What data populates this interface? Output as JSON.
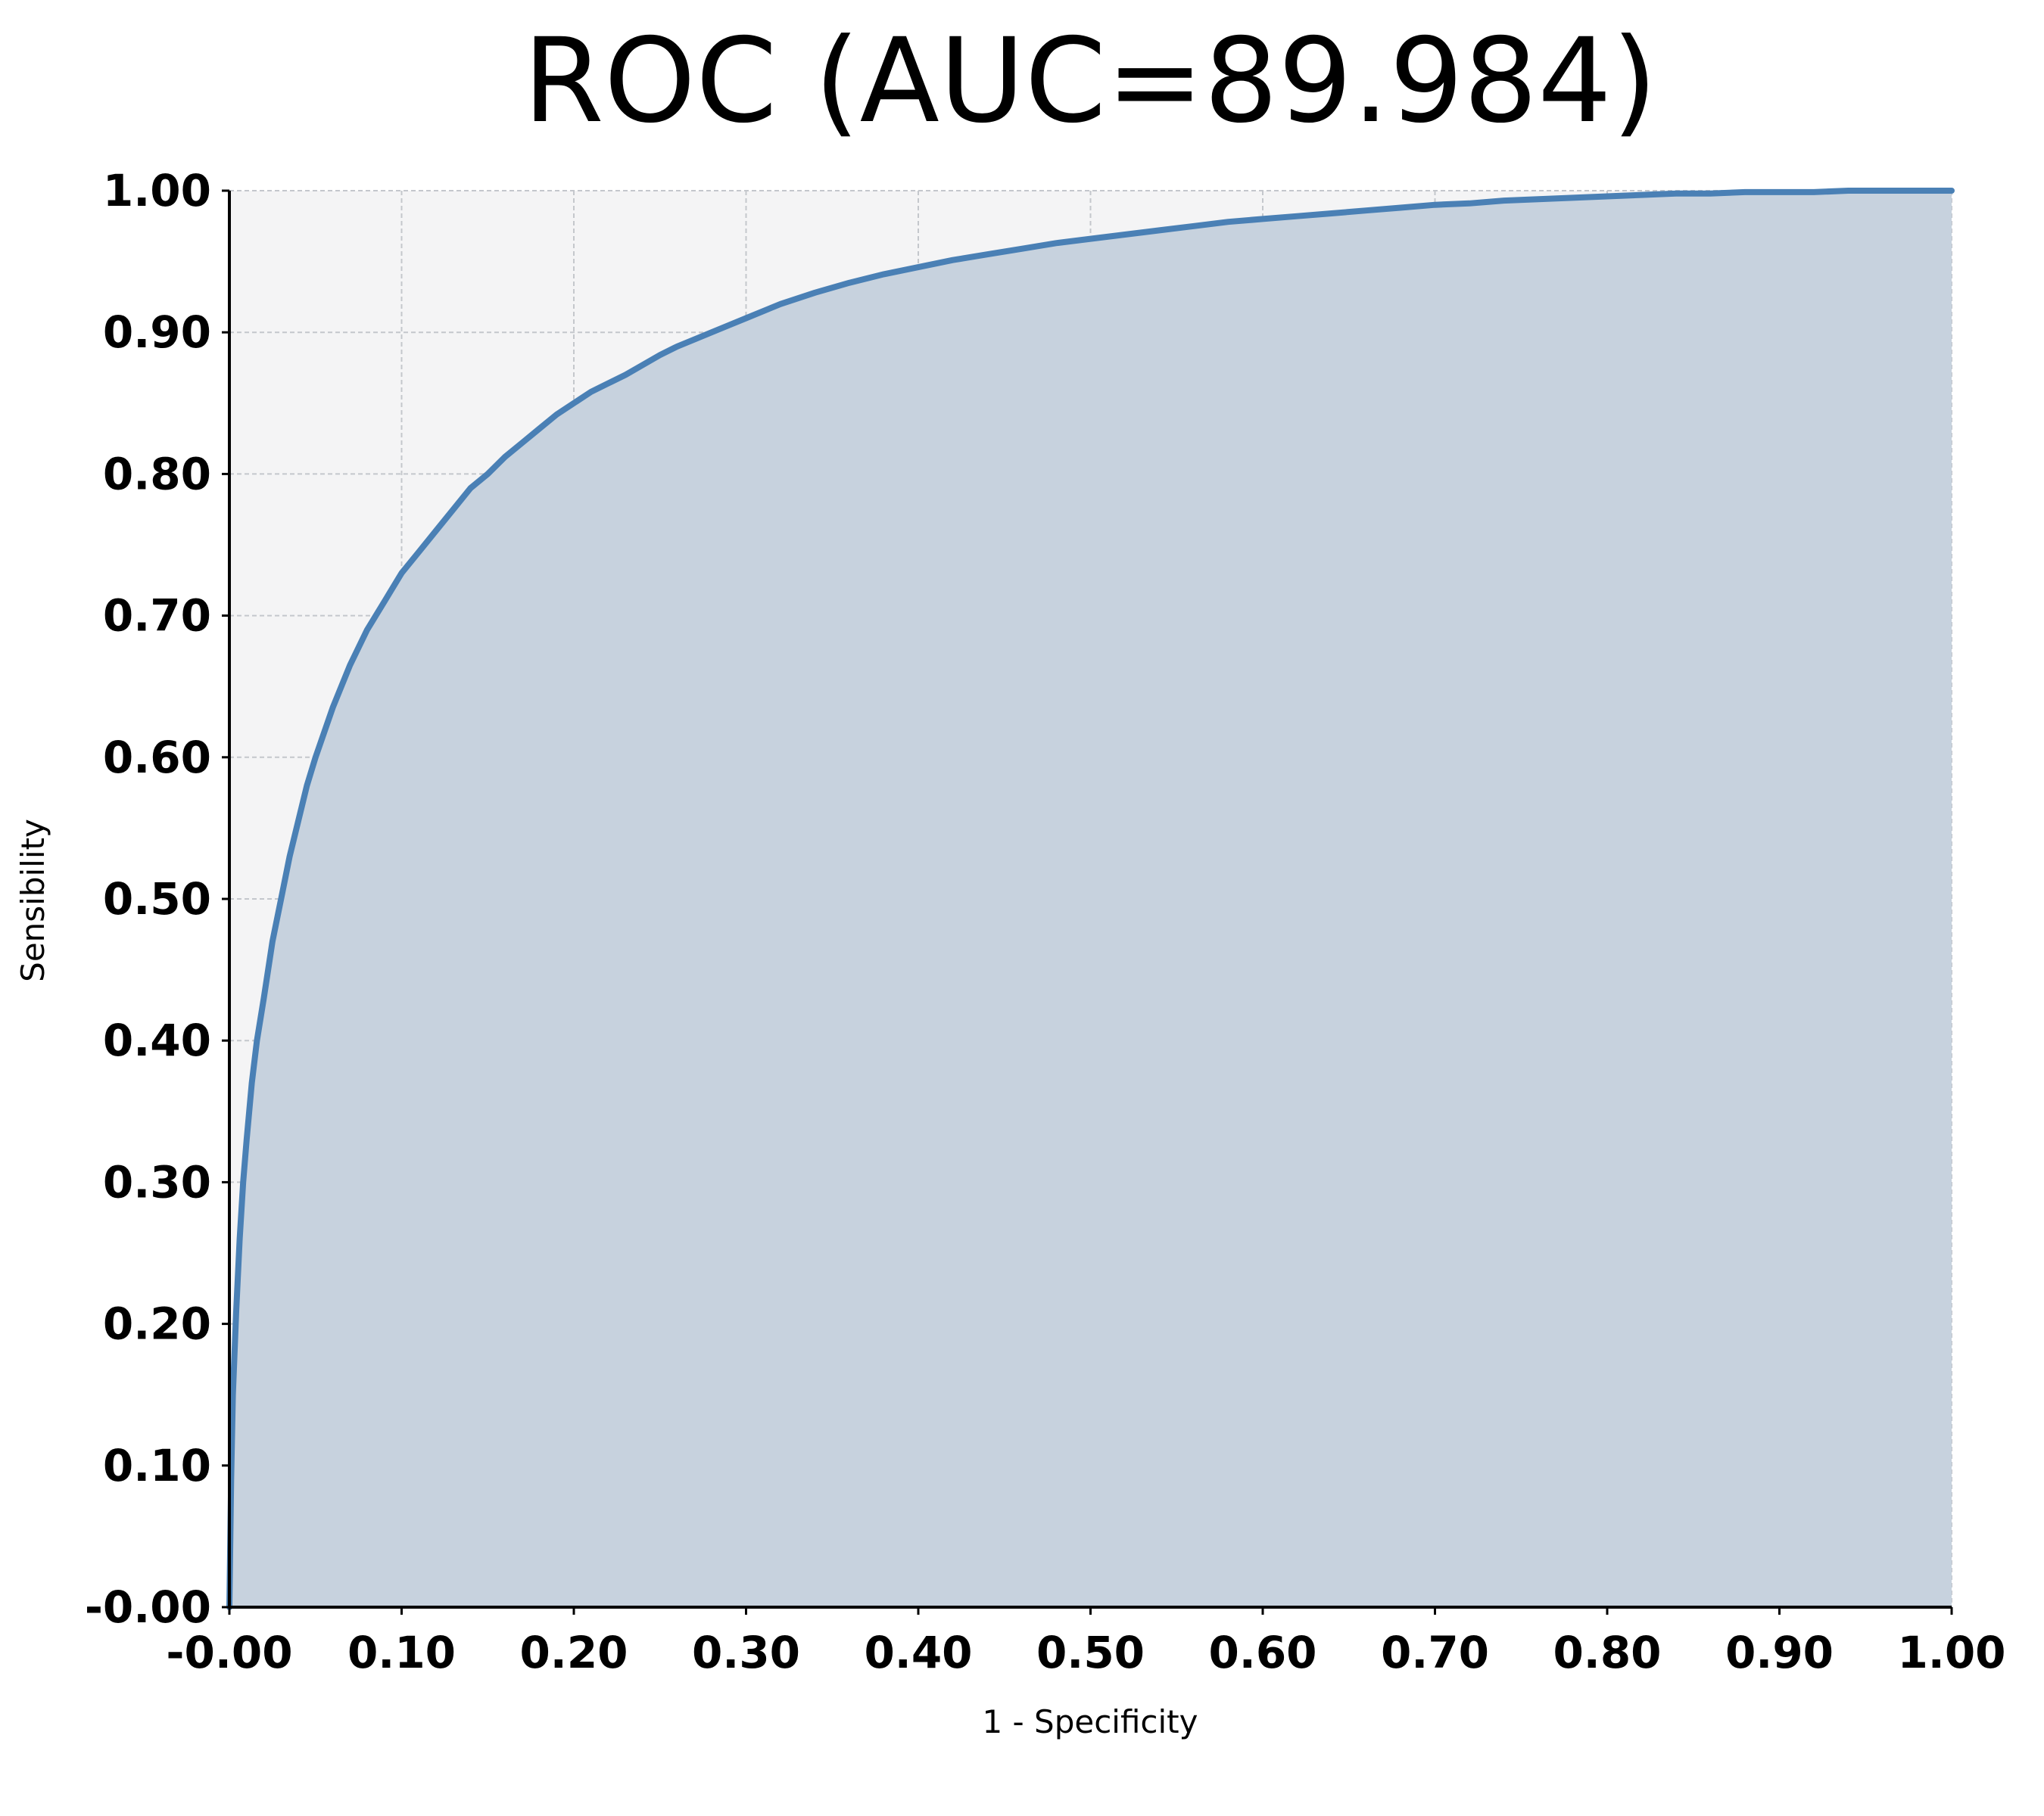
{
  "colors": {
    "plot_background": "#f4f4f5",
    "area_fill": "#c7d2de",
    "curve": "#4a80b5",
    "axis": "#000000",
    "grid": "#c4c7cc"
  },
  "chart_data": {
    "type": "area",
    "title": "ROC (AUC=89.984)",
    "xlabel": "1 - Specificity",
    "ylabel": "Sensibility",
    "xlim": [
      0,
      1
    ],
    "ylim": [
      0,
      1
    ],
    "grid": true,
    "x_ticks": [
      "-0.00",
      "0.10",
      "0.20",
      "0.30",
      "0.40",
      "0.50",
      "0.60",
      "0.70",
      "0.80",
      "0.90",
      "1.00"
    ],
    "y_ticks": [
      "-0.00",
      "0.10",
      "0.20",
      "0.30",
      "0.40",
      "0.50",
      "0.60",
      "0.70",
      "0.80",
      "0.90",
      "1.00"
    ],
    "series": [
      {
        "name": "ROC",
        "x": [
          0.0,
          0.001,
          0.002,
          0.004,
          0.006,
          0.008,
          0.01,
          0.013,
          0.016,
          0.02,
          0.025,
          0.03,
          0.035,
          0.04,
          0.045,
          0.05,
          0.06,
          0.07,
          0.08,
          0.09,
          0.1,
          0.11,
          0.12,
          0.13,
          0.14,
          0.15,
          0.16,
          0.17,
          0.18,
          0.19,
          0.2,
          0.21,
          0.22,
          0.23,
          0.24,
          0.25,
          0.26,
          0.27,
          0.28,
          0.29,
          0.3,
          0.32,
          0.34,
          0.36,
          0.38,
          0.4,
          0.42,
          0.44,
          0.46,
          0.48,
          0.5,
          0.52,
          0.54,
          0.56,
          0.58,
          0.6,
          0.62,
          0.64,
          0.66,
          0.68,
          0.7,
          0.72,
          0.74,
          0.76,
          0.78,
          0.8,
          0.82,
          0.84,
          0.86,
          0.88,
          0.9,
          0.92,
          0.94,
          0.96,
          0.98,
          1.0
        ],
        "y": [
          0.0,
          0.09,
          0.15,
          0.21,
          0.26,
          0.3,
          0.33,
          0.37,
          0.4,
          0.43,
          0.47,
          0.5,
          0.53,
          0.555,
          0.58,
          0.6,
          0.635,
          0.665,
          0.69,
          0.71,
          0.73,
          0.745,
          0.76,
          0.775,
          0.79,
          0.8,
          0.812,
          0.822,
          0.832,
          0.842,
          0.85,
          0.858,
          0.864,
          0.87,
          0.877,
          0.884,
          0.89,
          0.895,
          0.9,
          0.905,
          0.91,
          0.92,
          0.928,
          0.935,
          0.941,
          0.946,
          0.951,
          0.955,
          0.959,
          0.963,
          0.966,
          0.969,
          0.972,
          0.975,
          0.978,
          0.98,
          0.982,
          0.984,
          0.986,
          0.988,
          0.99,
          0.991,
          0.993,
          0.994,
          0.995,
          0.996,
          0.997,
          0.998,
          0.998,
          0.999,
          0.999,
          0.999,
          1.0,
          1.0,
          1.0,
          1.0
        ]
      }
    ]
  }
}
